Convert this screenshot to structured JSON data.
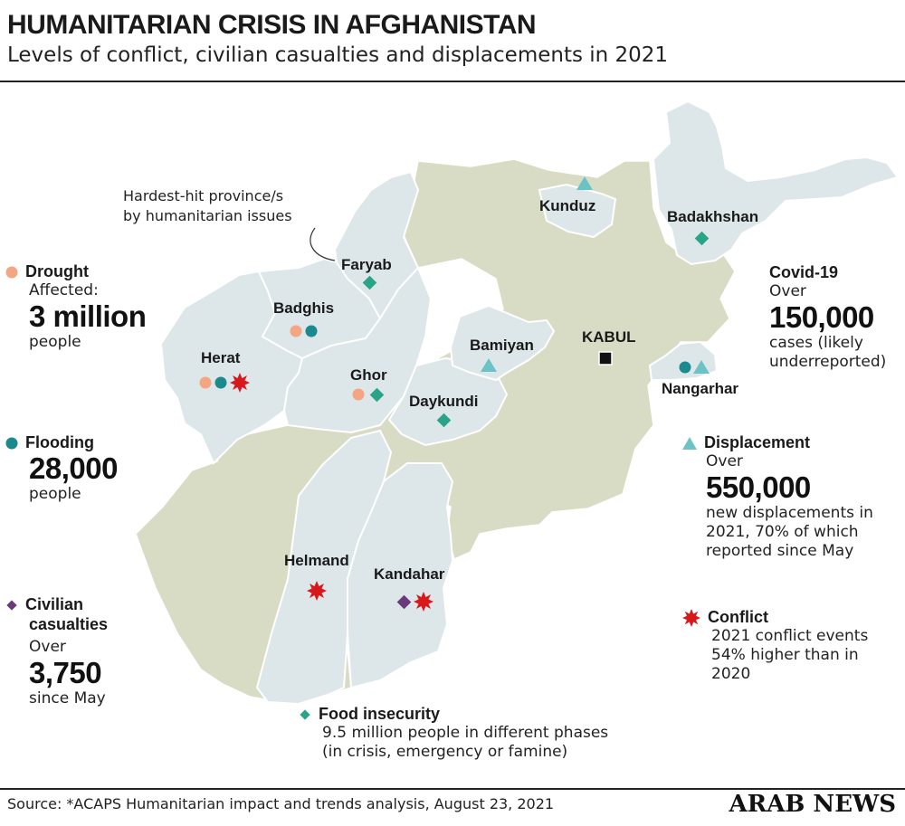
{
  "header": {
    "title": "HUMANITARIAN CRISIS IN AFGHANISTAN",
    "subtitle": "Levels of conflict, civilian casualties and displacements in 2021"
  },
  "colors": {
    "drought": "#f4a582",
    "flooding": "#1a8a8e",
    "civilian_casualties": "#6b3a7a",
    "displacement": "#6cc3c6",
    "conflict": "#d7191c",
    "food_insecurity": "#2aa488",
    "hardest_hit_fill": "#dde6e8",
    "other_fill": "#d8dcc4",
    "border": "#ffffff"
  },
  "annotation": {
    "line1": "Hardest-hit province/s",
    "line2": "by humanitarian issues"
  },
  "provinces": [
    {
      "name": "Faryab",
      "indicators": [
        "food_insecurity"
      ]
    },
    {
      "name": "Badghis",
      "indicators": [
        "drought",
        "flooding"
      ]
    },
    {
      "name": "Herat",
      "indicators": [
        "drought",
        "flooding",
        "conflict"
      ]
    },
    {
      "name": "Ghor",
      "indicators": [
        "drought",
        "food_insecurity"
      ]
    },
    {
      "name": "Daykundi",
      "indicators": [
        "food_insecurity"
      ]
    },
    {
      "name": "Bamiyan",
      "indicators": [
        "displacement"
      ]
    },
    {
      "name": "Kunduz",
      "indicators": [
        "displacement"
      ]
    },
    {
      "name": "Badakhshan",
      "indicators": [
        "food_insecurity"
      ]
    },
    {
      "name": "Nangarhar",
      "indicators": [
        "flooding",
        "displacement"
      ]
    },
    {
      "name": "Helmand",
      "indicators": [
        "conflict"
      ]
    },
    {
      "name": "Kandahar",
      "indicators": [
        "civilian_casualties",
        "conflict"
      ]
    }
  ],
  "capital": {
    "name": "KABUL",
    "icon": "square-icon"
  },
  "legend": {
    "drought": {
      "title": "Drought",
      "pre": "Affected:",
      "big": "3 million",
      "post": "people",
      "icon": "circle"
    },
    "flooding": {
      "title": "Flooding",
      "big": "28,000",
      "post": "people",
      "icon": "circle"
    },
    "civilian_casualties": {
      "title_line1": "Civilian",
      "title_line2": "casualties",
      "pre": "Over",
      "big": "3,750",
      "post": "since May",
      "icon": "diamond"
    },
    "covid": {
      "title": "Covid-19",
      "pre": "Over",
      "big": "150,000",
      "post_line1": "cases (likely",
      "post_line2": "underreported)"
    },
    "displacement": {
      "title": "Displacement",
      "pre": "Over",
      "big": "550,000",
      "post_line1": "new displacements in",
      "post_line2": "2021, 70% of which",
      "post_line3": "reported since May",
      "icon": "triangle"
    },
    "conflict": {
      "title": "Conflict",
      "post_line1": "2021 conflict events",
      "post_line2": "54% higher than in",
      "post_line3": "2020",
      "icon": "burst"
    },
    "food_insecurity": {
      "title": "Food insecurity",
      "post_line1": "9.5 million people in different phases",
      "post_line2": "(in crisis, emergency or famine)",
      "icon": "diamond"
    }
  },
  "footer": {
    "source": "Source: *ACAPS Humanitarian impact and trends analysis, August 23, 2021",
    "brand": "ARAB NEWS"
  }
}
